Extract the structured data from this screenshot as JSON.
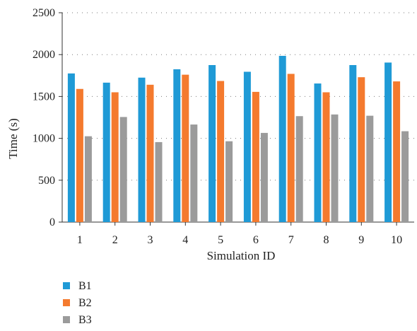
{
  "chart_data": {
    "type": "bar",
    "categories": [
      "1",
      "2",
      "3",
      "4",
      "5",
      "6",
      "7",
      "8",
      "9",
      "10"
    ],
    "series": [
      {
        "name": "B1",
        "color": "#1f9ad6",
        "values": [
          1775,
          1665,
          1725,
          1825,
          1875,
          1795,
          1985,
          1655,
          1875,
          1905
        ]
      },
      {
        "name": "B2",
        "color": "#f47a2e",
        "values": [
          1590,
          1550,
          1640,
          1760,
          1685,
          1555,
          1770,
          1550,
          1730,
          1680
        ]
      },
      {
        "name": "B3",
        "color": "#9b9b9b",
        "values": [
          1025,
          1255,
          955,
          1165,
          965,
          1065,
          1265,
          1285,
          1270,
          1085
        ]
      }
    ],
    "xlabel": "Simulation ID",
    "ylabel": "Time (s)",
    "ylim": [
      0,
      2500
    ],
    "yticks": [
      0,
      500,
      1000,
      1500,
      2000,
      2500
    ],
    "grid": "horizontal dotted",
    "legend_position": "bottom-left"
  }
}
